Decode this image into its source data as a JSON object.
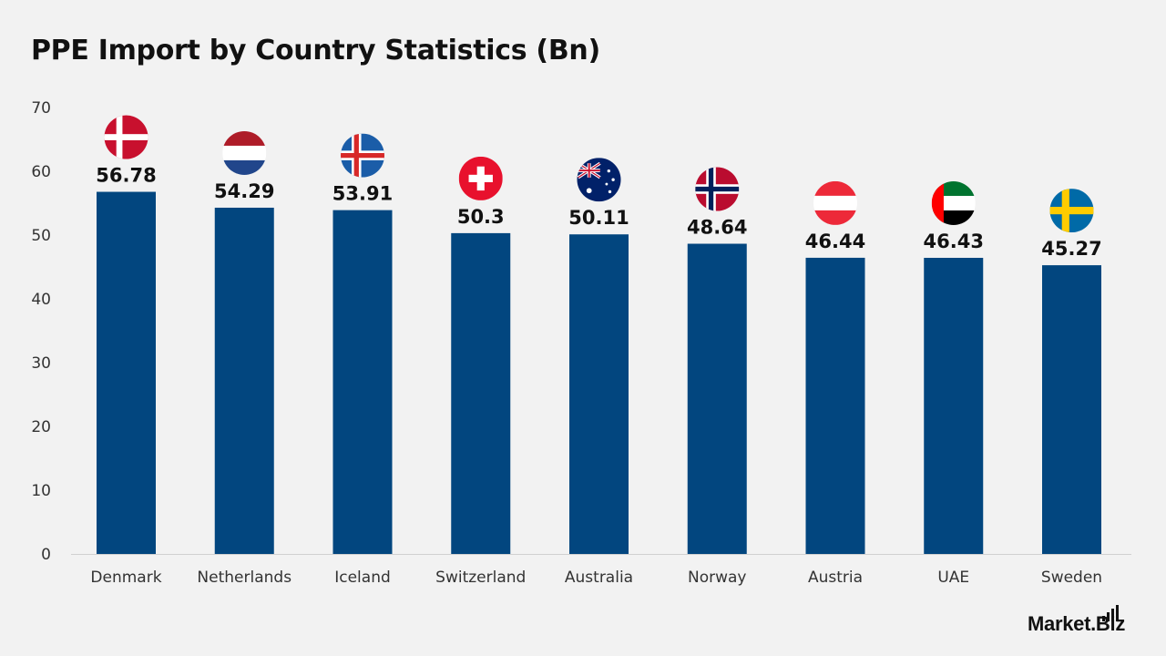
{
  "chart_data": {
    "type": "bar",
    "title": "PPE Import by Country Statistics (Bn)",
    "categories": [
      "Denmark",
      "Netherlands",
      "Iceland",
      "Switzerland",
      "Australia",
      "Norway",
      "Austria",
      "UAE",
      "Sweden"
    ],
    "values": [
      56.78,
      54.29,
      53.91,
      50.3,
      50.11,
      48.64,
      46.44,
      46.43,
      45.27
    ],
    "value_labels": [
      "56.78",
      "54.29",
      "53.91",
      "50.3",
      "50.11",
      "48.64",
      "46.44",
      "46.43",
      "45.27"
    ],
    "flags": [
      "denmark-flag-icon",
      "netherlands-flag-icon",
      "iceland-flag-icon",
      "switzerland-flag-icon",
      "australia-flag-icon",
      "norway-flag-icon",
      "austria-flag-icon",
      "uae-flag-icon",
      "sweden-flag-icon"
    ],
    "ylim": [
      0,
      70
    ],
    "yticks": [
      0,
      10,
      20,
      30,
      40,
      50,
      60,
      70
    ],
    "xlabel": "",
    "ylabel": "",
    "grid": false,
    "legend": "none",
    "bar_color": "#02467f"
  },
  "branding": {
    "logo": "Market.Biz"
  }
}
